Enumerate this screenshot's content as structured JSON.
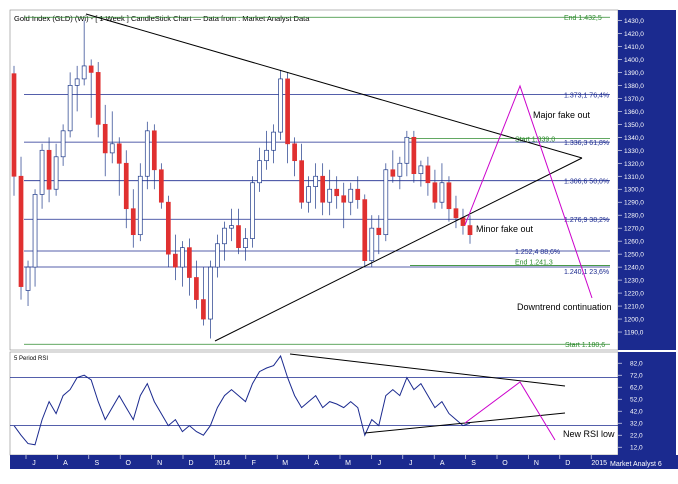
{
  "header": {
    "title": "Gold Index (GLD) (Wi) - [ 1 Week ] CandleStick Chart — Data from : Market Analyst Data"
  },
  "watermark": "Market Analyst 6",
  "colors": {
    "up": "#ffffff",
    "down": "#e03030",
    "candle_outline": "#1f3a8a",
    "hline": "#1b2a8f",
    "green_line": "#2e8b2e",
    "triangle": "#000000",
    "projection": "#cc00cc",
    "rsi_line": "#1b2a8f",
    "axis_bg": "#1b2a8f"
  },
  "chart_data": [
    {
      "type": "candlestick",
      "title": "Gold Index (GLD) (Wi) - [ 1 Week ] CandleStick Chart — Data from : Market Analyst Data",
      "x_tick_labels": [
        "J",
        "A",
        "S",
        "O",
        "N",
        "D",
        "2014",
        "F",
        "M",
        "A",
        "M",
        "J",
        "J",
        "A",
        "S",
        "O",
        "N",
        "D",
        "2015"
      ],
      "y_tick_labels": [
        "1430,0",
        "1420,0",
        "1410,0",
        "1400,0",
        "1390,0",
        "1380,0",
        "1370,0",
        "1360,0",
        "1350,0",
        "1340,0",
        "1330,0",
        "1320,0",
        "1310,0",
        "1300,0",
        "1290,0",
        "1280,0",
        "1270,0",
        "1260,0",
        "1250,0",
        "1240,0",
        "1230,0",
        "1220,0",
        "1210,0",
        "1200,0",
        "1190,0"
      ],
      "ylim": [
        1180,
        1435
      ],
      "candles": [
        [
          1389,
          1395,
          1295,
          1310
        ],
        [
          1310,
          1325,
          1215,
          1225
        ],
        [
          1222,
          1245,
          1210,
          1240
        ],
        [
          1240,
          1300,
          1225,
          1296
        ],
        [
          1296,
          1335,
          1285,
          1330
        ],
        [
          1330,
          1340,
          1290,
          1300
        ],
        [
          1300,
          1335,
          1295,
          1325
        ],
        [
          1325,
          1350,
          1318,
          1345
        ],
        [
          1345,
          1390,
          1340,
          1380
        ],
        [
          1380,
          1395,
          1360,
          1385
        ],
        [
          1385,
          1430,
          1380,
          1395
        ],
        [
          1395,
          1400,
          1355,
          1390
        ],
        [
          1390,
          1398,
          1340,
          1350
        ],
        [
          1350,
          1365,
          1310,
          1328
        ],
        [
          1328,
          1360,
          1320,
          1335
        ],
        [
          1335,
          1340,
          1295,
          1320
        ],
        [
          1320,
          1330,
          1270,
          1285
        ],
        [
          1285,
          1300,
          1255,
          1265
        ],
        [
          1265,
          1320,
          1260,
          1310
        ],
        [
          1310,
          1352,
          1300,
          1345
        ],
        [
          1345,
          1350,
          1300,
          1315
        ],
        [
          1315,
          1320,
          1285,
          1290
        ],
        [
          1290,
          1295,
          1240,
          1250
        ],
        [
          1250,
          1265,
          1230,
          1240
        ],
        [
          1240,
          1260,
          1225,
          1255
        ],
        [
          1255,
          1262,
          1218,
          1232
        ],
        [
          1232,
          1245,
          1208,
          1215
        ],
        [
          1215,
          1240,
          1195,
          1200
        ],
        [
          1200,
          1245,
          1185,
          1240
        ],
        [
          1240,
          1265,
          1232,
          1258
        ],
        [
          1258,
          1275,
          1245,
          1270
        ],
        [
          1270,
          1285,
          1260,
          1272
        ],
        [
          1272,
          1285,
          1250,
          1255
        ],
        [
          1255,
          1270,
          1245,
          1262
        ],
        [
          1262,
          1310,
          1255,
          1305
        ],
        [
          1305,
          1332,
          1298,
          1322
        ],
        [
          1322,
          1345,
          1315,
          1330
        ],
        [
          1330,
          1350,
          1320,
          1344
        ],
        [
          1344,
          1392,
          1338,
          1385
        ],
        [
          1385,
          1390,
          1320,
          1335
        ],
        [
          1335,
          1340,
          1310,
          1322
        ],
        [
          1322,
          1335,
          1285,
          1290
        ],
        [
          1290,
          1310,
          1282,
          1302
        ],
        [
          1302,
          1320,
          1285,
          1310
        ],
        [
          1310,
          1320,
          1280,
          1290
        ],
        [
          1290,
          1315,
          1280,
          1300
        ],
        [
          1300,
          1310,
          1285,
          1295
        ],
        [
          1295,
          1305,
          1270,
          1290
        ],
        [
          1290,
          1305,
          1280,
          1300
        ],
        [
          1300,
          1310,
          1285,
          1292
        ],
        [
          1292,
          1296,
          1240,
          1245
        ],
        [
          1245,
          1280,
          1240,
          1270
        ],
        [
          1270,
          1280,
          1250,
          1265
        ],
        [
          1265,
          1320,
          1260,
          1315
        ],
        [
          1315,
          1330,
          1305,
          1310
        ],
        [
          1310,
          1325,
          1300,
          1320
        ],
        [
          1320,
          1345,
          1310,
          1340
        ],
        [
          1340,
          1345,
          1305,
          1312
        ],
        [
          1312,
          1322,
          1302,
          1318
        ],
        [
          1318,
          1325,
          1295,
          1305
        ],
        [
          1305,
          1315,
          1285,
          1290
        ],
        [
          1290,
          1320,
          1285,
          1305
        ],
        [
          1305,
          1310,
          1275,
          1285
        ],
        [
          1285,
          1295,
          1270,
          1278
        ],
        [
          1278,
          1285,
          1265,
          1272
        ],
        [
          1272,
          1280,
          1258,
          1265
        ]
      ],
      "horizontal_levels": [
        {
          "value": 1432.5,
          "label": "End 1.432,5",
          "color": "green"
        },
        {
          "value": 1373.1,
          "label": "1.373,1 76,4%",
          "color": "blue"
        },
        {
          "value": 1339.0,
          "label": "Start 1.339,0",
          "color": "green"
        },
        {
          "value": 1336.3,
          "label": "1.336,3 61,8%",
          "color": "blue"
        },
        {
          "value": 1306.6,
          "label": "1.306,6 50,0%",
          "color": "blue"
        },
        {
          "value": 1276.9,
          "label": "1.276,9 38,2%",
          "color": "blue"
        },
        {
          "value": 1252.4,
          "label": "1.252,4 88,6%",
          "color": "blue"
        },
        {
          "value": 1241.3,
          "label": "End 1.241,3",
          "color": "green"
        },
        {
          "value": 1240.1,
          "label": "1.240,1 23,6%",
          "color": "blue"
        },
        {
          "value": 1180.6,
          "label": "Start 1.180,6",
          "color": "green"
        }
      ],
      "annotations": [
        "Major fake out",
        "Minor fake out",
        "Downtrend continuation"
      ]
    },
    {
      "type": "line",
      "title": "5 Period RSI",
      "y_tick_labels": [
        "82,0",
        "72,0",
        "62,0",
        "52,0",
        "42,0",
        "32,0",
        "22,0",
        "12,0"
      ],
      "ylim": [
        8,
        88
      ],
      "levels": [
        70,
        30
      ],
      "values": [
        30,
        22,
        15,
        14,
        35,
        50,
        40,
        55,
        60,
        70,
        72,
        68,
        50,
        35,
        45,
        55,
        45,
        35,
        55,
        65,
        50,
        40,
        30,
        35,
        25,
        30,
        25,
        22,
        30,
        45,
        55,
        60,
        55,
        50,
        65,
        75,
        78,
        80,
        88,
        70,
        55,
        45,
        50,
        55,
        45,
        50,
        48,
        45,
        50,
        45,
        22,
        35,
        30,
        55,
        60,
        55,
        70,
        60,
        65,
        55,
        45,
        50,
        40,
        35,
        30,
        32
      ],
      "annotations": [
        "New RSI low"
      ]
    }
  ]
}
